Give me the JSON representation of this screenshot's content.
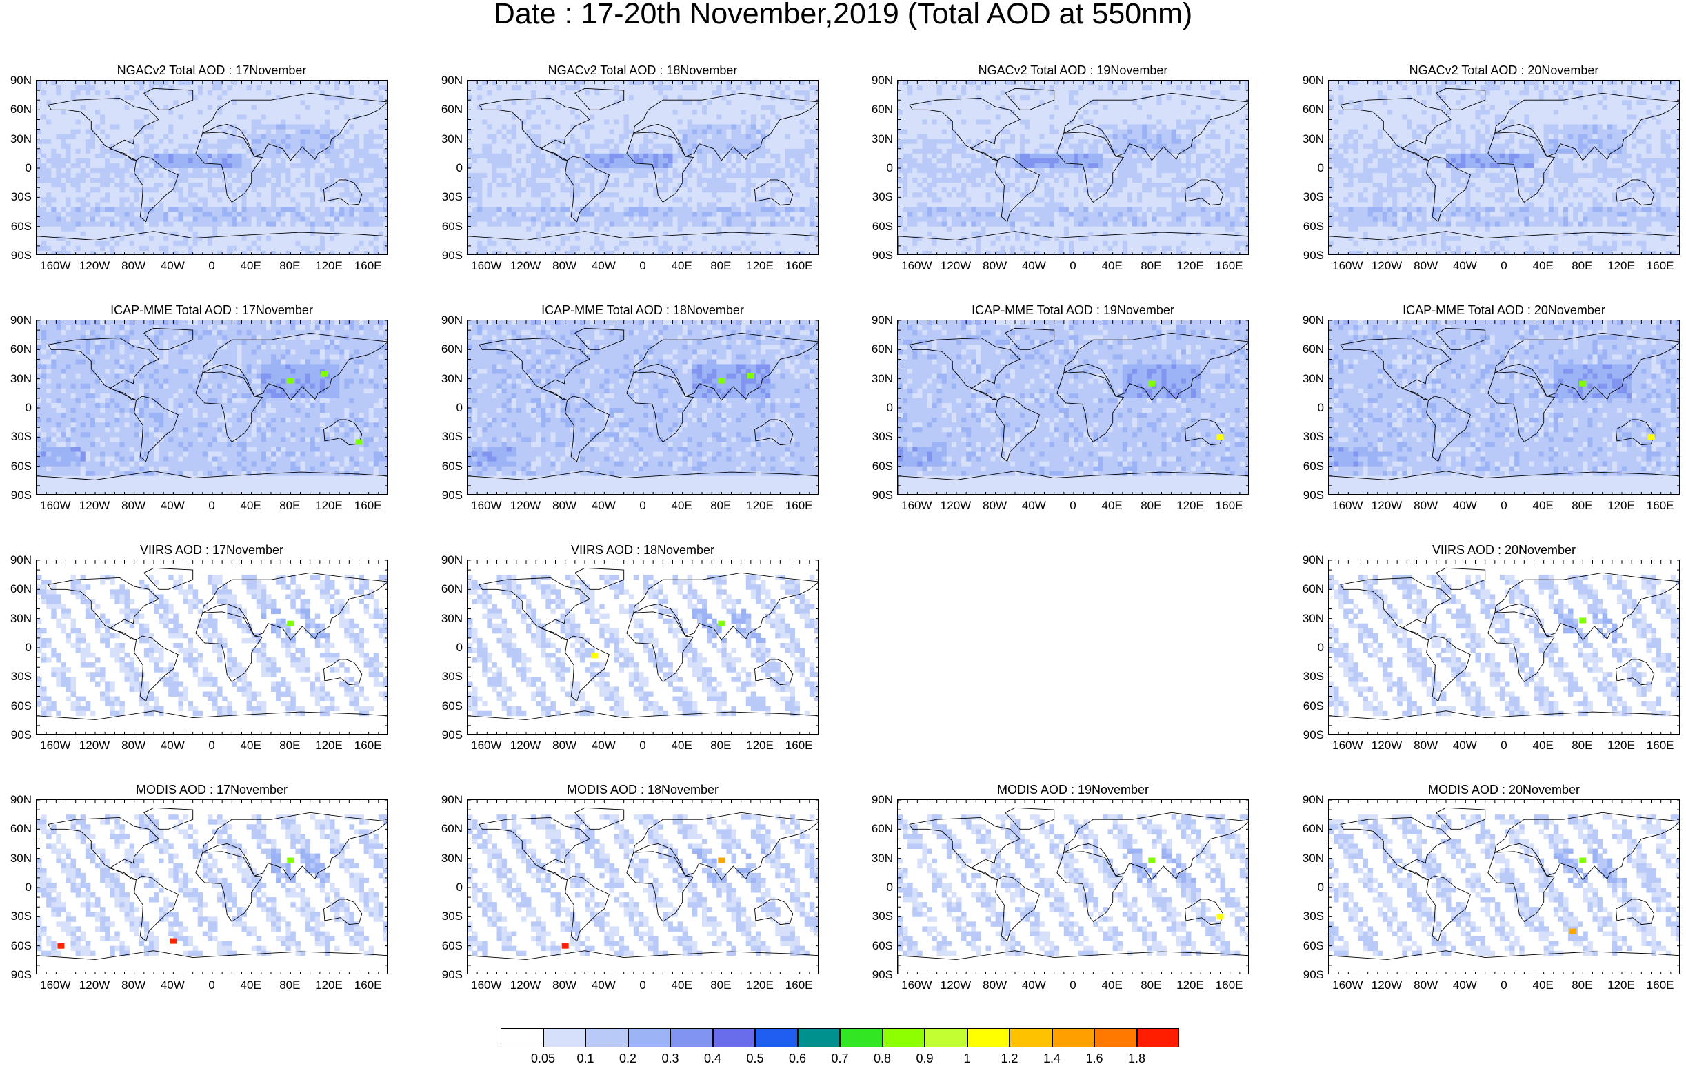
{
  "title": "Date : 17-20th November,2019 (Total AOD at 550nm)",
  "lat_labels": [
    "90N",
    "60N",
    "30N",
    "0",
    "30S",
    "60S",
    "90S"
  ],
  "lon_labels": [
    "160W",
    "120W",
    "80W",
    "40W",
    "0",
    "40E",
    "80E",
    "120E",
    "160E"
  ],
  "rows": [
    {
      "id": "ngac",
      "panels": [
        {
          "col": 0,
          "title": "NGACv2 Total AOD : 17November",
          "style": "model",
          "hotspots": []
        },
        {
          "col": 1,
          "title": "NGACv2 Total AOD : 18November",
          "style": "model",
          "hotspots": []
        },
        {
          "col": 2,
          "title": "NGACv2 Total AOD : 19November",
          "style": "model",
          "hotspots": []
        },
        {
          "col": 3,
          "title": "NGACv2 Total AOD : 20November",
          "style": "model",
          "hotspots": []
        }
      ]
    },
    {
      "id": "icap",
      "panels": [
        {
          "col": 0,
          "title": "ICAP-MME Total AOD : 17November",
          "style": "icap",
          "hotspots": [
            [
              80,
              28,
              "#7fff00"
            ],
            [
              115,
              35,
              "#7fff00"
            ],
            [
              150,
              -35,
              "#7fff00"
            ]
          ]
        },
        {
          "col": 1,
          "title": "ICAP-MME Total AOD : 18November",
          "style": "icap",
          "hotspots": [
            [
              80,
              28,
              "#7fff00"
            ],
            [
              110,
              33,
              "#7fff00"
            ]
          ]
        },
        {
          "col": 2,
          "title": "ICAP-MME Total AOD : 19November",
          "style": "icap",
          "hotspots": [
            [
              80,
              25,
              "#7fff00"
            ],
            [
              150,
              -30,
              "#ffff00"
            ]
          ]
        },
        {
          "col": 3,
          "title": "ICAP-MME Total AOD : 20November",
          "style": "icap",
          "hotspots": [
            [
              80,
              25,
              "#7fff00"
            ],
            [
              150,
              -30,
              "#ffff00"
            ]
          ]
        }
      ]
    },
    {
      "id": "viirs",
      "panels": [
        {
          "col": 0,
          "title": "VIIRS AOD : 17November",
          "style": "sat",
          "hotspots": [
            [
              80,
              25,
              "#7fff00"
            ]
          ]
        },
        {
          "col": 1,
          "title": "VIIRS AOD : 18November",
          "style": "sat",
          "hotspots": [
            [
              -50,
              -8,
              "#ffff00"
            ],
            [
              80,
              25,
              "#7fff00"
            ]
          ]
        },
        {
          "col": 3,
          "title": "VIIRS AOD : 20November",
          "style": "sat",
          "hotspots": [
            [
              80,
              28,
              "#7fff00"
            ]
          ]
        }
      ]
    },
    {
      "id": "modis",
      "panels": [
        {
          "col": 0,
          "title": "MODIS AOD : 17November",
          "style": "sat",
          "hotspots": [
            [
              -155,
              -60,
              "#ff2400"
            ],
            [
              -40,
              -55,
              "#ff2400"
            ],
            [
              80,
              28,
              "#7fff00"
            ]
          ]
        },
        {
          "col": 1,
          "title": "MODIS AOD : 18November",
          "style": "sat",
          "hotspots": [
            [
              80,
              28,
              "#ffa500"
            ],
            [
              -80,
              -60,
              "#ff2400"
            ]
          ]
        },
        {
          "col": 2,
          "title": "MODIS AOD : 19November",
          "style": "sat",
          "hotspots": [
            [
              80,
              28,
              "#7fff00"
            ],
            [
              150,
              -30,
              "#ffff00"
            ]
          ]
        },
        {
          "col": 3,
          "title": "MODIS AOD : 20November",
          "style": "sat",
          "hotspots": [
            [
              80,
              28,
              "#7fff00"
            ],
            [
              70,
              -45,
              "#ffa500"
            ]
          ]
        }
      ]
    }
  ],
  "colorbar": {
    "colors": [
      "#ffffff",
      "#d6e0fb",
      "#b9c9f8",
      "#9cb3f5",
      "#8094f0",
      "#6a6deb",
      "#1f5ef0",
      "#00918f",
      "#32e624",
      "#8dff00",
      "#c1ff33",
      "#ffff00",
      "#ffc200",
      "#ffa000",
      "#ff7800",
      "#ff1e00"
    ],
    "labels": [
      "0.05",
      "0.1",
      "0.2",
      "0.3",
      "0.4",
      "0.5",
      "0.6",
      "0.7",
      "0.8",
      "0.9",
      "1",
      "1.2",
      "1.4",
      "1.6",
      "1.8"
    ]
  }
}
